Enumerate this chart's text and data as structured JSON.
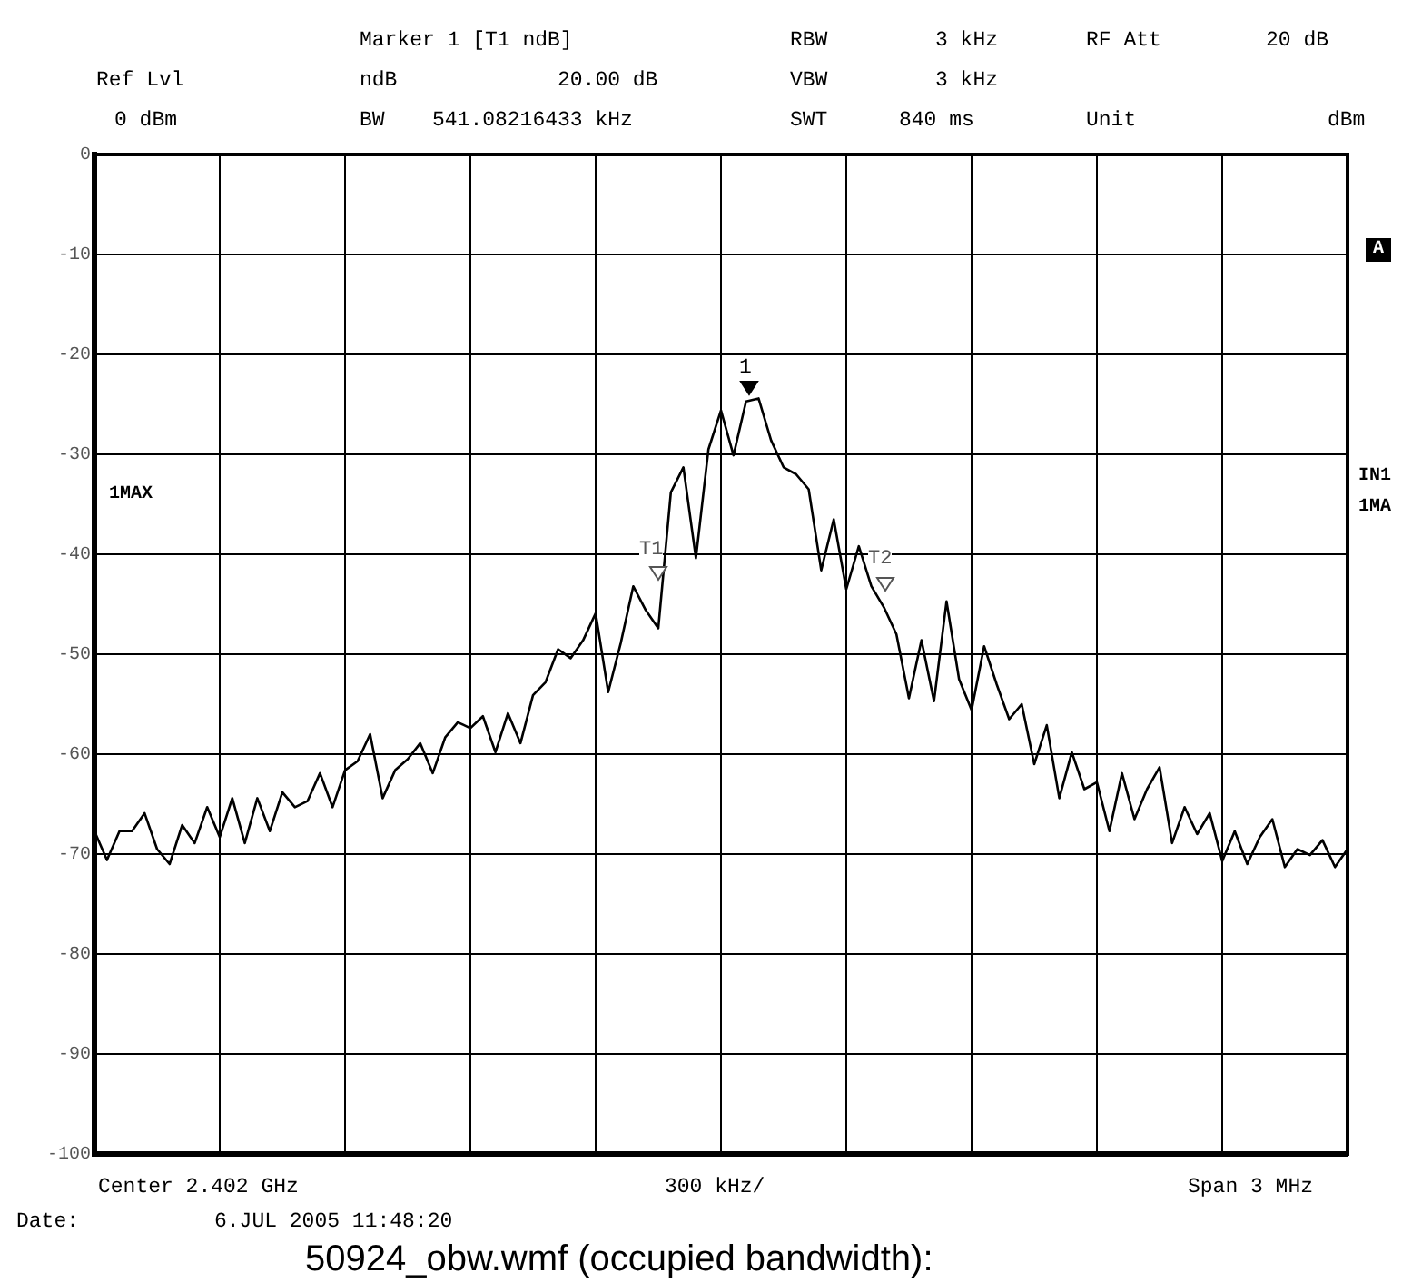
{
  "chart_data": {
    "type": "line",
    "tick_labels": "y",
    "grid": true,
    "marker": "none",
    "legend": false,
    "categories": [
      null,
      null,
      null,
      null,
      null,
      null,
      null,
      null,
      null,
      null,
      null,
      null,
      null,
      null,
      null,
      null,
      null,
      null,
      null,
      null,
      null,
      null,
      null,
      null,
      null,
      null,
      null,
      null,
      null,
      null,
      null,
      null,
      null,
      null,
      null,
      null,
      null,
      null,
      null,
      null,
      null,
      null,
      null,
      null,
      null,
      null,
      null,
      null,
      null,
      null,
      null,
      null,
      null,
      null,
      null,
      null,
      null,
      null,
      null,
      null,
      null,
      null,
      null,
      null,
      null,
      null,
      null,
      null,
      null,
      null,
      null,
      null,
      null,
      null,
      null,
      null,
      null,
      null,
      null,
      null,
      null,
      null,
      null,
      null,
      null,
      null,
      null,
      null,
      null,
      null,
      null,
      null,
      null,
      null,
      null,
      null,
      null,
      null,
      null,
      null,
      null
    ],
    "ylim": [
      -100,
      0
    ],
    "yticks": [
      -100,
      -90,
      -80,
      -70,
      -60,
      -50,
      -40,
      -30,
      -20,
      -10,
      0
    ],
    "series": [
      {
        "color": "#000000",
        "values": [
          -67.7,
          -70.6,
          -67.7,
          -67.7,
          -65.9,
          -69.5,
          -71.0,
          -67.1,
          -68.9,
          -65.3,
          -68.3,
          -64.4,
          -68.9,
          -64.4,
          -67.7,
          -63.8,
          -65.3,
          -64.7,
          -61.9,
          -65.3,
          -61.6,
          -60.7,
          -58.0,
          -64.4,
          -61.6,
          -60.5,
          -58.9,
          -61.9,
          -58.3,
          -56.8,
          -57.4,
          -56.2,
          -59.8,
          -55.9,
          -58.9,
          -54.1,
          -52.8,
          -49.5,
          -50.4,
          -48.6,
          -45.9,
          -53.8,
          -48.9,
          -43.2,
          -45.6,
          -47.4,
          -33.8,
          -31.3,
          -40.4,
          -29.5,
          -25.6,
          -30.1,
          -24.7,
          -24.4,
          -28.6,
          -31.3,
          -32.0,
          -33.5,
          -41.6,
          -36.5,
          -43.5,
          -39.2,
          -43.2,
          -45.3,
          -48.0,
          -54.4,
          -48.6,
          -54.7,
          -44.7,
          -52.5,
          -55.6,
          -49.2,
          -53.0,
          -56.5,
          -55.0,
          -61.0,
          -57.1,
          -64.4,
          -59.8,
          -63.5,
          -62.8,
          -67.7,
          -61.9,
          -66.5,
          -63.5,
          -61.3,
          -68.9,
          -65.3,
          -68.0,
          -65.9,
          -70.7,
          -67.7,
          -71.0,
          -68.3,
          -66.5,
          -71.3,
          -69.5,
          -70.1,
          -68.6,
          -71.3,
          -69.5
        ]
      }
    ],
    "annotations": [
      "Marker 1 [T1 ndB]",
      "RBW",
      "3 kHz",
      "RF Att",
      "20 dB",
      "Ref Lvl",
      "ndB",
      "20.00 dB",
      "VBW",
      "3 kHz",
      "0 dBm",
      "BW",
      "541.08216433 kHz",
      "SWT",
      "840 ms",
      "Unit",
      "dBm",
      "A",
      "1MAX",
      "IN1",
      "1MA",
      "Center 2.402 GHz",
      "300 kHz/",
      "Span 3 MHz",
      "Date:",
      "6.JUL 2005 11:48:20",
      "50924_obw.wmf (occupied bandwidth):",
      "1",
      "T1",
      "T2"
    ]
  }
}
